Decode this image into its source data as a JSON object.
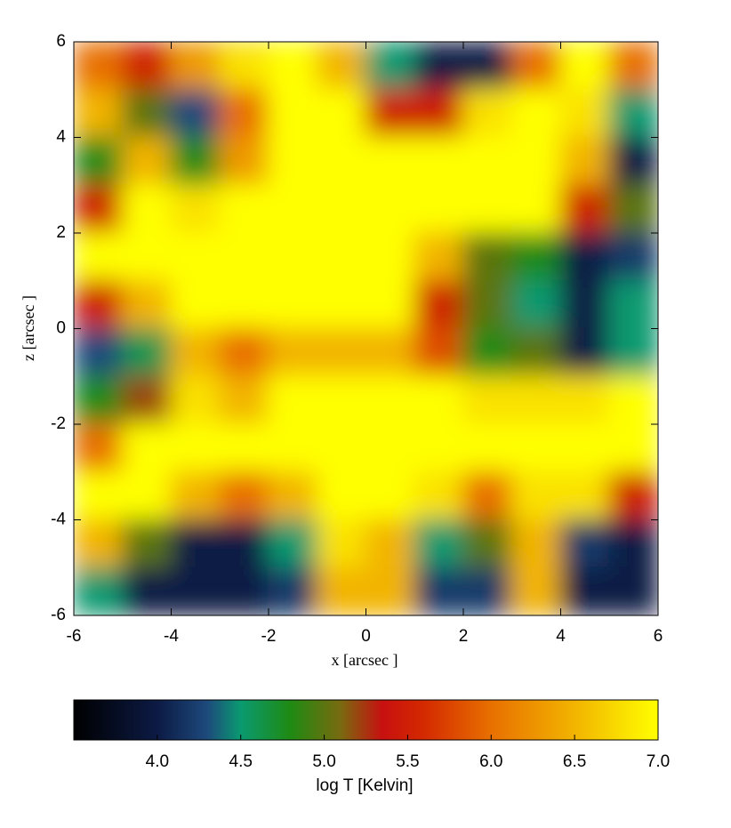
{
  "chart_data": {
    "type": "heatmap",
    "x_label": "x [arcsec ]",
    "y_label": "z [arcsec ]",
    "xlim": [
      -6,
      6
    ],
    "ylim": [
      -6,
      6
    ],
    "xticks": [
      -6,
      -4,
      -2,
      0,
      2,
      4,
      6
    ],
    "yticks": [
      -6,
      -4,
      -2,
      0,
      2,
      4,
      6
    ],
    "x": [
      -5.5,
      -4.5,
      -3.5,
      -2.5,
      -1.5,
      -0.5,
      0.5,
      1.5,
      2.5,
      3.5,
      4.5,
      5.5
    ],
    "y": [
      5.5,
      4.5,
      3.5,
      2.5,
      1.5,
      0.5,
      -0.5,
      -1.5,
      -2.5,
      -3.5,
      -4.5,
      -5.5
    ],
    "z": [
      [
        6.0,
        5.5,
        6.3,
        6.8,
        7.0,
        6.5,
        4.5,
        4.0,
        4.0,
        6.0,
        7.0,
        6.0
      ],
      [
        6.5,
        5.0,
        4.3,
        6.0,
        7.0,
        7.0,
        5.5,
        5.5,
        6.8,
        7.0,
        6.8,
        4.5
      ],
      [
        4.8,
        6.5,
        4.8,
        6.3,
        7.0,
        7.0,
        7.0,
        7.0,
        7.0,
        7.0,
        6.5,
        4.0
      ],
      [
        5.5,
        7.0,
        6.8,
        7.0,
        7.0,
        7.0,
        7.0,
        7.0,
        7.0,
        7.0,
        5.5,
        5.0
      ],
      [
        7.0,
        7.0,
        7.0,
        7.0,
        7.0,
        7.0,
        7.0,
        6.5,
        5.0,
        4.8,
        4.0,
        4.2
      ],
      [
        5.5,
        6.5,
        7.0,
        7.0,
        7.0,
        7.0,
        7.0,
        5.5,
        5.0,
        4.5,
        4.0,
        4.5
      ],
      [
        4.3,
        4.6,
        6.5,
        6.0,
        6.5,
        6.5,
        6.5,
        5.8,
        4.8,
        5.0,
        4.0,
        4.5
      ],
      [
        4.8,
        5.2,
        6.8,
        6.5,
        7.0,
        7.0,
        7.0,
        7.0,
        6.8,
        6.8,
        6.8,
        7.0
      ],
      [
        6.0,
        7.0,
        7.0,
        7.0,
        7.0,
        7.0,
        7.0,
        7.0,
        7.0,
        7.0,
        7.0,
        7.0
      ],
      [
        7.0,
        7.0,
        6.5,
        6.0,
        6.5,
        7.0,
        7.0,
        6.8,
        6.0,
        6.8,
        6.8,
        5.5
      ],
      [
        6.5,
        5.0,
        4.0,
        4.0,
        4.5,
        6.8,
        6.5,
        4.5,
        5.0,
        6.5,
        4.2,
        4.0
      ],
      [
        4.5,
        4.0,
        4.0,
        4.0,
        4.2,
        6.5,
        6.5,
        4.2,
        4.2,
        6.5,
        4.0,
        4.0
      ]
    ],
    "colorbar": {
      "label": "log T [Kelvin]",
      "lim": [
        3.5,
        7.0
      ],
      "ticks": [
        {
          "value": 4,
          "label": "4.0"
        },
        {
          "value": 4.5,
          "label": "4.5"
        },
        {
          "value": 5,
          "label": "5.0"
        },
        {
          "value": 5.5,
          "label": "5.5"
        },
        {
          "value": 6,
          "label": "6.0"
        },
        {
          "value": 6.5,
          "label": "6.5"
        },
        {
          "value": 7,
          "label": "7.0"
        }
      ],
      "colorscale": [
        [
          3.5,
          "#000000"
        ],
        [
          4.0,
          "#0c1a44"
        ],
        [
          4.3,
          "#1d4a7c"
        ],
        [
          4.5,
          "#0a9a70"
        ],
        [
          4.8,
          "#1f8a12"
        ],
        [
          5.1,
          "#7a6a10"
        ],
        [
          5.35,
          "#c81010"
        ],
        [
          5.6,
          "#d42a00"
        ],
        [
          6.0,
          "#e87000"
        ],
        [
          6.5,
          "#f2b400"
        ],
        [
          7.0,
          "#ffff00"
        ]
      ]
    }
  }
}
